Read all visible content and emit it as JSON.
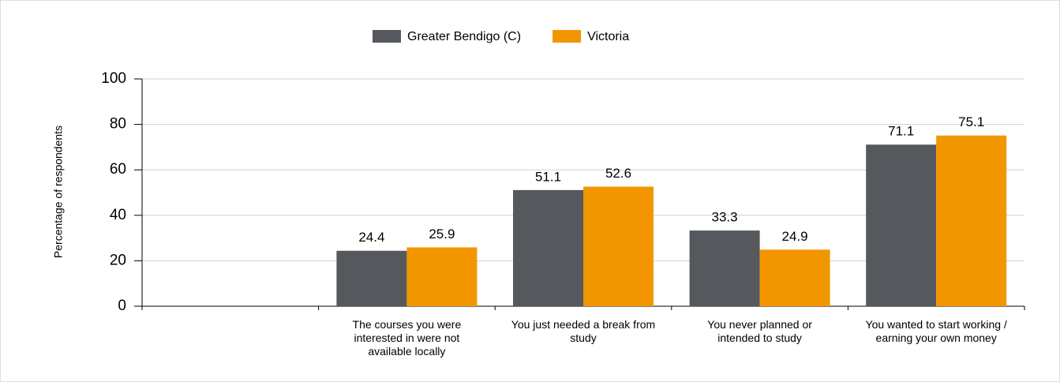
{
  "chart_data": {
    "type": "bar",
    "y_label": "Percentage of respondents",
    "categories": [
      null,
      "The courses you were interested in were not available locally",
      "You just needed a break from study",
      "You never planned or intended to study",
      "You wanted to start working / earning your own money"
    ],
    "series": [
      {
        "name": "Greater Bendigo (C)",
        "color": "#55585c",
        "values": [
          null,
          24.4,
          51.1,
          33.3,
          71.1
        ]
      },
      {
        "name": "Victoria",
        "color": "#f29600",
        "values": [
          null,
          25.9,
          52.6,
          24.9,
          75.1
        ]
      }
    ],
    "ylim": [
      0,
      100
    ],
    "yticks": [
      0,
      20,
      40,
      60,
      80,
      100
    ],
    "grid": true,
    "legend": "top"
  }
}
